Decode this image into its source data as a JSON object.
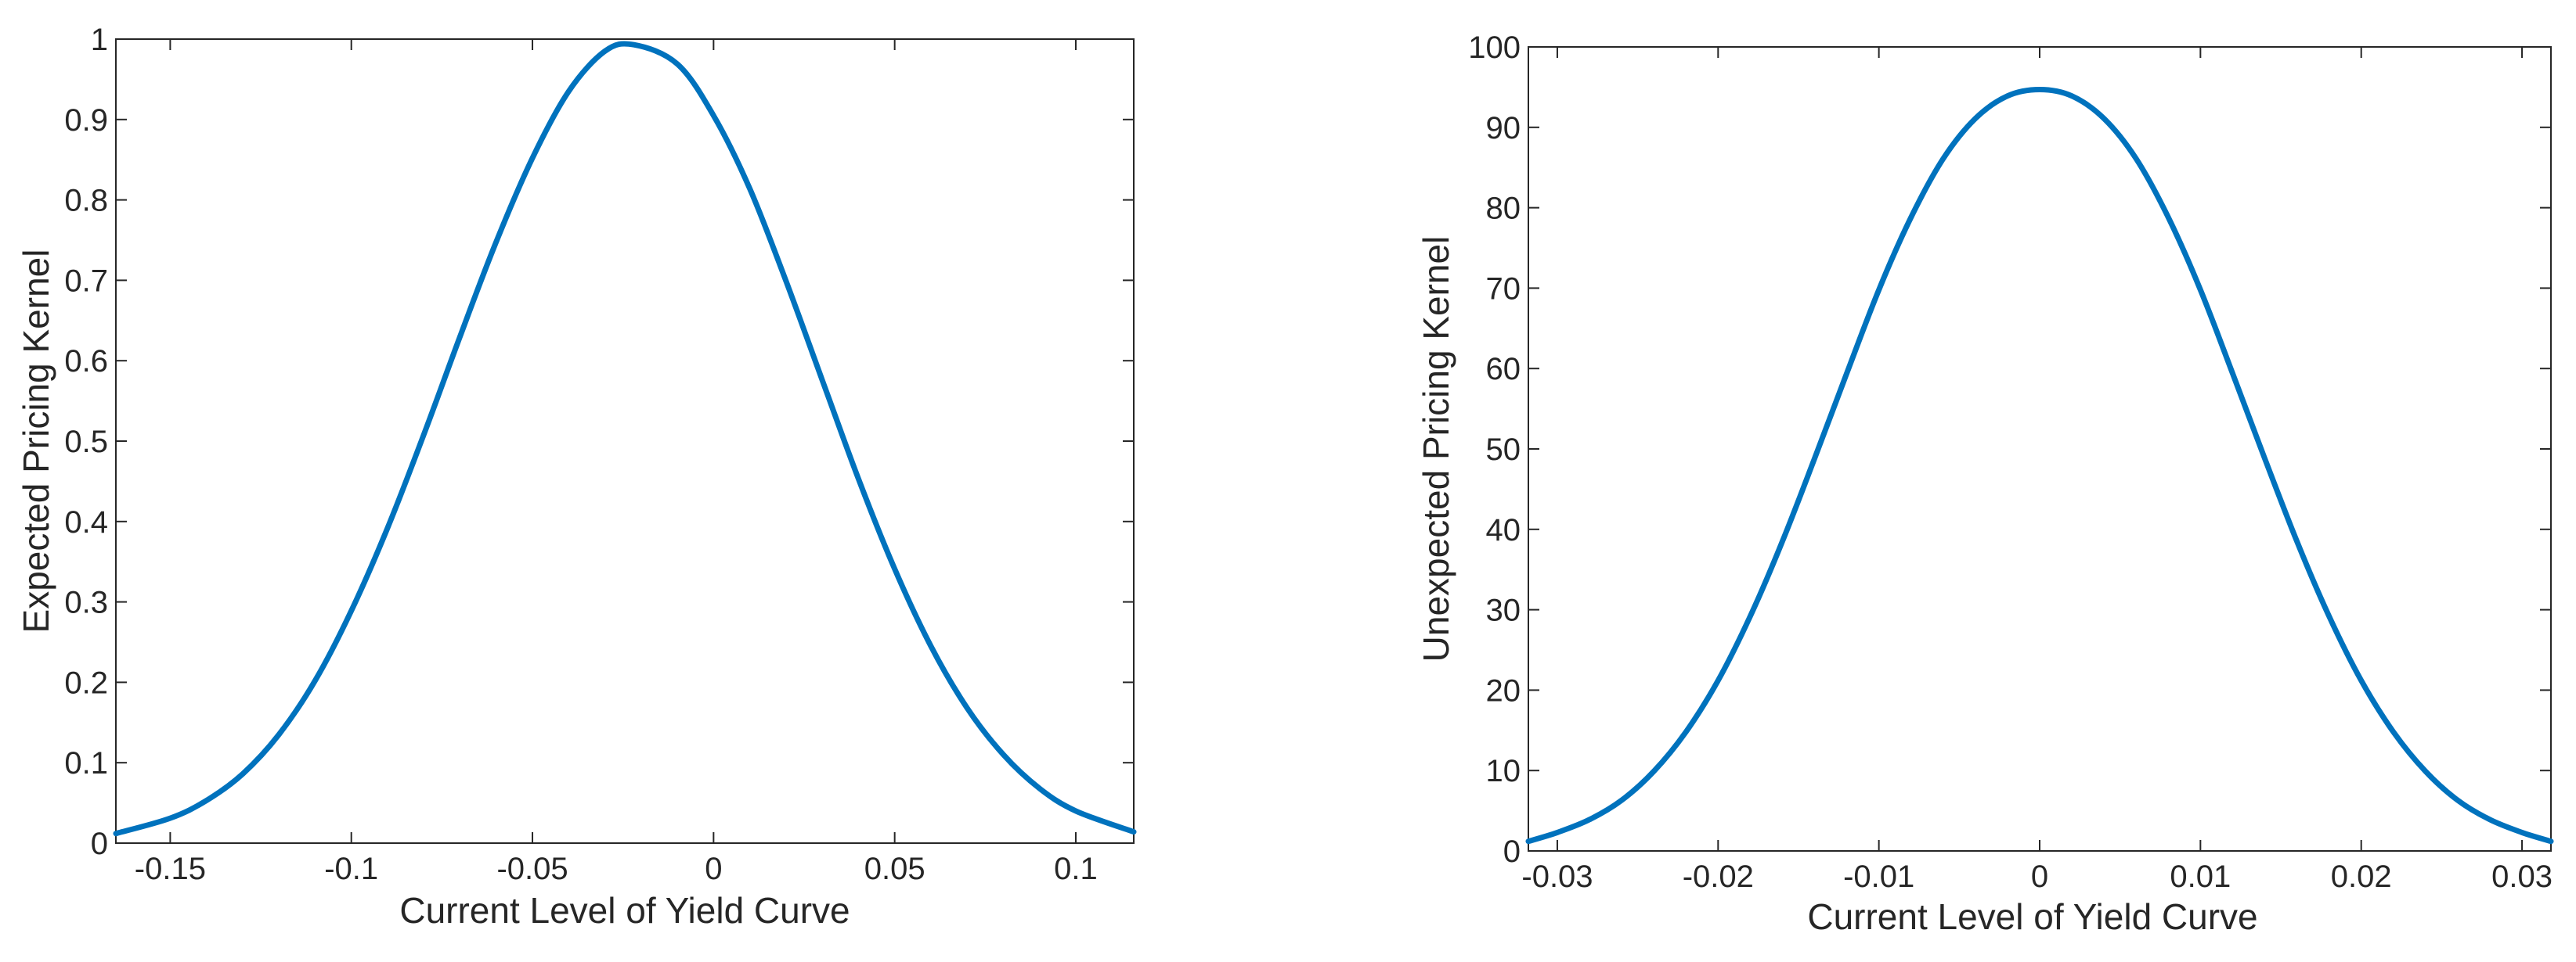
{
  "colors": {
    "line": "#0072BD",
    "axis": "#262626",
    "background": "#ffffff"
  },
  "chart_data": [
    {
      "type": "line",
      "title": "",
      "xlabel": "Current Level of Yield Curve",
      "ylabel": "Expected Pricing Kernel",
      "xlim": [
        -0.165,
        0.116
      ],
      "ylim": [
        0,
        1
      ],
      "grid": false,
      "xticks": [
        -0.15,
        -0.1,
        -0.05,
        0,
        0.05,
        0.1
      ],
      "xtick_labels": [
        "-0.15",
        "-0.1",
        "-0.05",
        "0",
        "0.05",
        "0.1"
      ],
      "yticks": [
        0,
        0.1,
        0.2,
        0.3,
        0.4,
        0.5,
        0.6,
        0.7,
        0.8,
        0.9,
        1
      ],
      "ytick_labels": [
        "0",
        "0.1",
        "0.2",
        "0.3",
        "0.4",
        "0.5",
        "0.6",
        "0.7",
        "0.8",
        "0.9",
        "1"
      ],
      "series": [
        {
          "x": [
            -0.165,
            -0.15,
            -0.14,
            -0.13,
            -0.12,
            -0.11,
            -0.1,
            -0.09,
            -0.08,
            -0.07,
            -0.06,
            -0.05,
            -0.04,
            -0.03,
            -0.022,
            -0.01,
            0,
            0.01,
            0.02,
            0.03,
            0.04,
            0.05,
            0.06,
            0.07,
            0.08,
            0.09,
            0.1,
            0.116
          ],
          "y": [
            0.012,
            0.031,
            0.053,
            0.086,
            0.135,
            0.202,
            0.289,
            0.392,
            0.508,
            0.63,
            0.748,
            0.852,
            0.935,
            0.985,
            0.993,
            0.969,
            0.905,
            0.814,
            0.699,
            0.576,
            0.453,
            0.341,
            0.245,
            0.168,
            0.11,
            0.068,
            0.04,
            0.014
          ]
        }
      ]
    },
    {
      "type": "line",
      "title": "",
      "xlabel": "Current Level of Yield Curve",
      "ylabel": "Unexpected Pricing Kernel",
      "xlim": [
        -0.0318,
        0.0318
      ],
      "ylim": [
        0,
        100
      ],
      "grid": false,
      "xticks": [
        -0.03,
        -0.02,
        -0.01,
        0,
        0.01,
        0.02,
        0.03
      ],
      "xtick_labels": [
        "-0.03",
        "-0.02",
        "-0.01",
        "0",
        "0.01",
        "0.02",
        "0.03"
      ],
      "yticks": [
        0,
        10,
        20,
        30,
        40,
        50,
        60,
        70,
        80,
        90,
        100
      ],
      "ytick_labels": [
        "0",
        "10",
        "20",
        "30",
        "40",
        "50",
        "60",
        "70",
        "80",
        "90",
        "100"
      ],
      "series": [
        {
          "x": [
            -0.0318,
            -0.03,
            -0.028,
            -0.026,
            -0.024,
            -0.022,
            -0.02,
            -0.018,
            -0.016,
            -0.014,
            -0.012,
            -0.01,
            -0.008,
            -0.006,
            -0.004,
            -0.002,
            0,
            0.002,
            0.004,
            0.006,
            0.008,
            0.01,
            0.012,
            0.014,
            0.016,
            0.018,
            0.02,
            0.022,
            0.024,
            0.026,
            0.028,
            0.03,
            0.0318
          ],
          "y": [
            1.2,
            2.3,
            3.9,
            6.3,
            9.9,
            14.8,
            21.2,
            29.2,
            38.5,
            48.8,
            59.4,
            69.8,
            78.8,
            86.1,
            91.1,
            93.9,
            94.7,
            93.9,
            91.1,
            86.1,
            78.8,
            69.8,
            59.4,
            48.8,
            38.5,
            29.2,
            21.2,
            14.8,
            9.9,
            6.3,
            3.9,
            2.3,
            1.2
          ]
        }
      ]
    }
  ]
}
